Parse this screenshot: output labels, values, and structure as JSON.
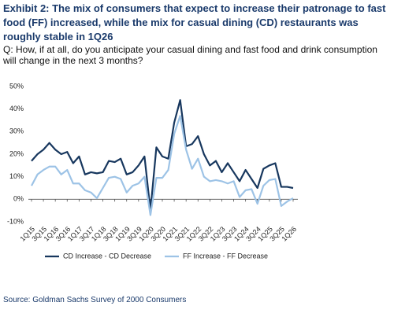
{
  "chart_data": {
    "type": "line",
    "title": "Exhibit 2: The mix of consumers that expect to increase their patronage to fast food (FF) increased, while the mix for casual dining (CD) restaurants was roughly stable in 1Q26",
    "subtitle": "Q: How, if at all, do you anticipate your casual dining and fast food and drink consumption will change in the next 3 months?",
    "source": "Source: Goldman Sachs Survey of 2000 Consumers",
    "categories": [
      "1Q15",
      null,
      "3Q15",
      null,
      "1Q16",
      null,
      "3Q16",
      null,
      "1Q17",
      null,
      "3Q17",
      null,
      "1Q18",
      null,
      "3Q18",
      null,
      "1Q19",
      null,
      "3Q19",
      null,
      "1Q20",
      null,
      "3Q20",
      null,
      "1Q21",
      null,
      "3Q21",
      null,
      "1Q22",
      null,
      "3Q22",
      null,
      "1Q23",
      null,
      "3Q23",
      null,
      "1Q24",
      null,
      "3Q24",
      null,
      "1Q25",
      null,
      "3Q25",
      null,
      "1Q26"
    ],
    "series": [
      {
        "name": "CD Increase - CD Decrease",
        "color": "#17375e",
        "values": [
          17,
          20,
          22,
          25,
          22,
          20,
          21,
          16,
          19,
          11,
          12,
          11.5,
          12,
          17,
          16.5,
          18,
          11,
          12,
          15,
          19,
          -5,
          23,
          19,
          18,
          34,
          44,
          23.5,
          24.5,
          28,
          20,
          15,
          17,
          12,
          16,
          12,
          8,
          13,
          9,
          5,
          13.5,
          15,
          16,
          5.5,
          5.5,
          5
        ]
      },
      {
        "name": "FF Increase - FF Decrease",
        "color": "#9dc3e6",
        "values": [
          6,
          11,
          13,
          14.5,
          14.5,
          11,
          13,
          7,
          7,
          4,
          3,
          0.5,
          5,
          9.5,
          10,
          9,
          3,
          6,
          7,
          10,
          -7,
          9.5,
          9.5,
          13,
          29,
          37,
          22,
          13.5,
          18,
          10,
          8,
          8.5,
          8,
          7,
          8,
          1,
          4,
          4.5,
          -2,
          6,
          8.5,
          9,
          -3,
          -1,
          0.5
        ]
      }
    ],
    "ylim": [
      -10,
      50
    ],
    "yticks": [
      {
        "value": -10,
        "label": "-10%"
      },
      {
        "value": 0,
        "label": "0%"
      },
      {
        "value": 10,
        "label": "10%"
      },
      {
        "value": 20,
        "label": "20%"
      },
      {
        "value": 30,
        "label": "30%"
      },
      {
        "value": 40,
        "label": "40%"
      },
      {
        "value": 50,
        "label": "50%"
      }
    ],
    "grid": false
  }
}
